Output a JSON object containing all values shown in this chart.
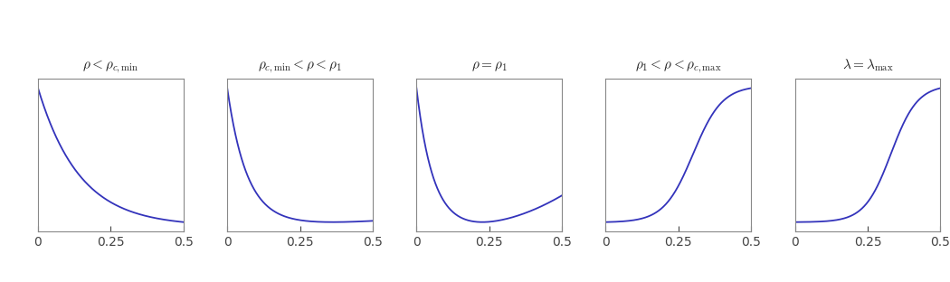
{
  "titles": [
    "$\\rho < \\rho_{c,\\mathrm{min}}$",
    "$\\rho_{c,\\mathrm{min}} < \\rho < \\rho_1$",
    "$\\rho = \\rho_1$",
    "$\\rho_1 < \\rho < \\rho_{c,\\mathrm{max}}$",
    "$\\lambda = \\lambda_{\\mathrm{max}}$"
  ],
  "xlim": [
    0,
    0.5
  ],
  "xticks": [
    0,
    0.25,
    0.5
  ],
  "xtick_labels": [
    "0",
    "0.25",
    "0.5"
  ],
  "line_color": "#3333bb",
  "background_color": "#ffffff",
  "fig_width": 10.5,
  "fig_height": 3.12,
  "dpi": 100
}
